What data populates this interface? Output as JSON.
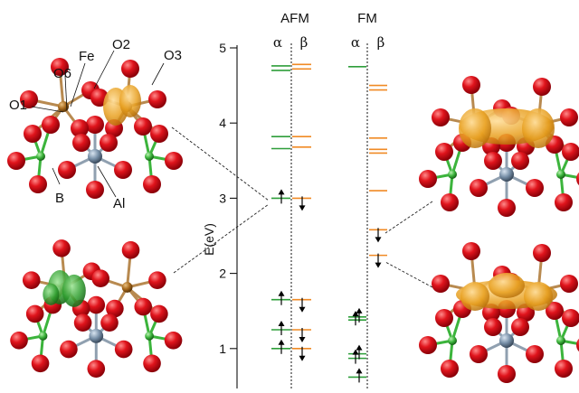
{
  "panels": {
    "afm_label": "AFM",
    "fm_label": "FM"
  },
  "spin_labels": {
    "afm_alpha": "α",
    "afm_beta": "β",
    "fm_alpha": "α",
    "fm_beta": "β"
  },
  "axis": {
    "label": "E(eV)",
    "ticks": [
      "5",
      "4",
      "3",
      "2",
      "1"
    ]
  },
  "atom_labels": {
    "o6": "O6",
    "fe": "Fe",
    "o2": "O2",
    "o3": "O3",
    "o1": "O1",
    "b": "B",
    "al": "Al"
  },
  "colors": {
    "alpha_level": "#2e9e3a",
    "beta_level": "#f08a24",
    "oxygen": "#d8141c",
    "iron": "#a86a1e",
    "aluminum": "#7890a8",
    "boron": "#3cb43c",
    "density_orange": "#e8a020",
    "density_green": "#2f9e2f"
  },
  "chart_data": {
    "type": "energy-level diagram",
    "y_unit": "eV",
    "ylim": [
      0.6,
      5.1
    ],
    "afm": {
      "alpha": [
        4.76,
        4.7,
        3.82,
        3.66,
        3.0,
        1.65,
        1.25,
        1.0
      ],
      "beta": [
        4.78,
        4.72,
        3.82,
        3.68,
        3.0,
        1.65,
        1.25,
        1.0
      ],
      "occupied_alpha": [
        1.65,
        1.25,
        1.0
      ],
      "occupied_beta": [
        1.65,
        1.25,
        1.0
      ],
      "arrow_up": [
        3.0,
        1.65,
        1.25,
        1.0
      ],
      "arrow_down": [
        3.0,
        1.65,
        1.25,
        1.0
      ]
    },
    "fm": {
      "alpha": [
        4.75,
        1.42,
        1.38,
        0.93,
        0.87,
        0.62
      ],
      "beta": [
        4.5,
        4.44,
        3.8,
        3.65,
        3.6,
        3.1,
        2.58,
        2.24
      ],
      "arrow_up": [
        1.42,
        1.38,
        0.93,
        0.87,
        0.62
      ],
      "arrow_down": [
        2.58,
        2.24
      ]
    }
  }
}
